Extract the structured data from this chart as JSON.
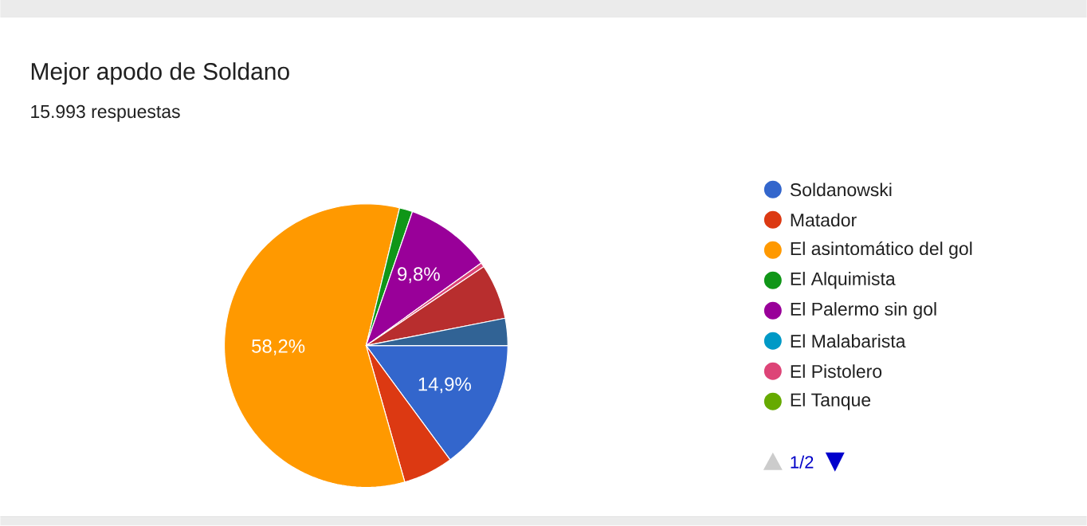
{
  "chart_data": {
    "type": "pie",
    "title": "Mejor apodo de Soldano",
    "subtitle": "15.993 respuestas",
    "categories": [
      "Soldanowski",
      "Matador",
      "El asintomático del gol",
      "El Alquimista",
      "El Palermo sin gol",
      "El Malabarista",
      "El Pistolero",
      "El Tanque",
      null,
      null
    ],
    "values": [
      14.9,
      5.7,
      58.2,
      1.5,
      9.8,
      null,
      0.5,
      null,
      6.3,
      3.1
    ],
    "colors": [
      "#3366cc",
      "#dc3912",
      "#ff9900",
      "#109618",
      "#990099",
      "#0099c6",
      "#dd4477",
      "#66aa00",
      "#b82e2e",
      "#316395"
    ],
    "value_labels": [
      "14,9%",
      null,
      "58,2%",
      null,
      "9,8%",
      null,
      null,
      null,
      null,
      null
    ],
    "legend": "right",
    "annotations": [
      "1/2"
    ]
  }
}
